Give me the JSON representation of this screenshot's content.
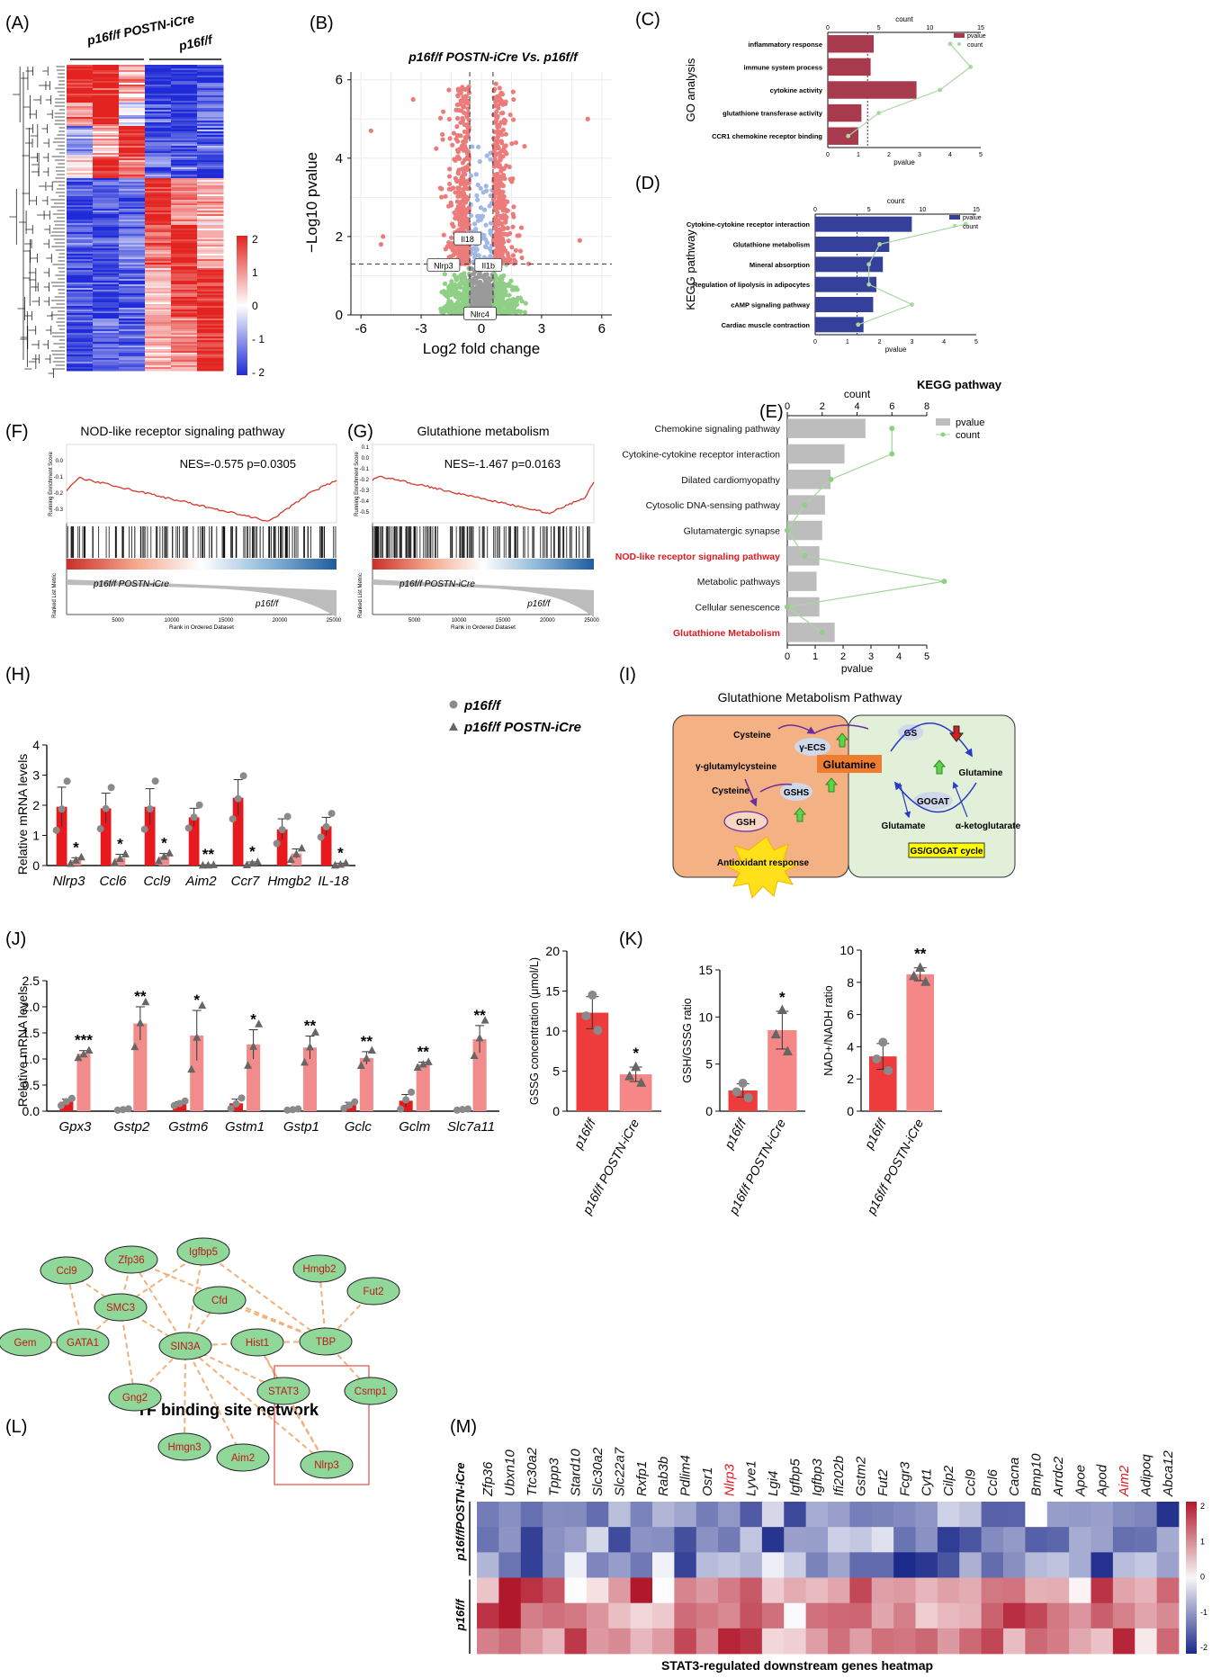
{
  "panels": {
    "A": {
      "label": "(A)",
      "groups": [
        "p16f/f POSTN-iCre",
        "p16f/f"
      ],
      "scale_ticks": [
        "2",
        "1",
        "0",
        "- 1",
        "- 2"
      ],
      "scale_colors": {
        "high": "#e3231f",
        "mid": "#ffffff",
        "low": "#1f2bd6"
      }
    },
    "B": {
      "label": "(B)",
      "title": "p16f/f POSTN-iCre  Vs. p16f/f",
      "xlabel": "Log2 fold change",
      "ylabel": "−Log10 pvalue",
      "gene_labels": [
        "Il18",
        "Nlrp3",
        "Il1b",
        "Nlrc4"
      ],
      "colors": {
        "up": "#ec7c7c",
        "mid": "#9fb8e6",
        "ns": "#8fcf86",
        "zero": "#9a9a9a"
      }
    },
    "C": {
      "label": "(C)",
      "side_label": "GO  analysis",
      "top_axis_label": "count",
      "bottom_axis_label": "pvalue",
      "legend": [
        "pvalue",
        "count"
      ],
      "terms": [
        "inflammatory response",
        "immune system process",
        "cytokine activity",
        "glutathione transferase activity",
        "CCR1 chemokine receptor binding"
      ],
      "bar_color": "#a83a4e"
    },
    "D": {
      "label": "(D)",
      "side_label": "KEGG  pathway",
      "top_axis_label": "count",
      "bottom_axis_label": "pvalue",
      "legend": [
        "pvalue",
        "count"
      ],
      "terms": [
        "Cytokine-cytokine receptor interaction",
        "Glutathione metabolism",
        "Mineral absorption",
        "Regulation of lipolysis in adipocytes",
        "cAMP signaling pathway",
        "Cardiac muscle contraction"
      ],
      "bar_color": "#34409a"
    },
    "E": {
      "label": "(E)",
      "title": "KEGG pathway",
      "legend": [
        "pvalue",
        "count"
      ],
      "highlight_color": "#e0191f"
    },
    "F": {
      "label": "(F)",
      "title": "NOD-like receptor signaling pathway",
      "stats": "NES=-0.575  p=0.0305",
      "ylabel_top": "Running Enrichment Score",
      "ylabel_bottom": "Ranked List Metric",
      "xlabel": "Rank in Ordered Dataset",
      "group1": "p16f/f POSTN-iCre",
      "group2": "p16f/f"
    },
    "G": {
      "label": "(G)",
      "title": "Glutathione metabolism",
      "stats": "NES=-1.467  p=0.0163",
      "ylabel_top": "Running Enrichment Score",
      "ylabel_bottom": "Ranked List Metric",
      "xlabel": "Rank in Ordered Dataset",
      "group1": "p16f/f POSTN-iCre",
      "group2": "p16f/f"
    },
    "H": {
      "label": "(H)",
      "ylabel": "Relative mRNA levels",
      "legend": [
        "p16f/f",
        "p16f/f POSTN-iCre"
      ],
      "colors": {
        "ctrl": "#e8191c",
        "cko": "#f28b8b"
      }
    },
    "I": {
      "label": "(I)",
      "title": "Glutathione Metabolism Pathway",
      "nodes": [
        "Cysteine",
        "γ-ECS",
        "γ-glutamylcysteine",
        "Cysteine",
        "GSHS",
        "GSH",
        "Antioxidant response",
        "Glutamine",
        "GS",
        "Glutamine",
        "GOGAT",
        "Glutamate",
        "α-ketoglutarate",
        "GS/GOGAT cycle"
      ]
    },
    "J": {
      "label": "(J)",
      "ylabel": "Relative mRNA levels"
    },
    "K": {
      "label": "(K)",
      "sub": [
        {
          "ylabel": "GSSG concentration (μmol/L)"
        },
        {
          "ylabel": "GSH/GSSG ratio"
        },
        {
          "ylabel": "NAD+/NADH ratio"
        }
      ],
      "groups": [
        "p16f/f",
        "p16f/f POSTN-iCre"
      ]
    },
    "L": {
      "label": "(L)",
      "title": "TF binding site network",
      "nodes": [
        "Ccl9",
        "Zfp36",
        "Igfbp5",
        "Hmgb2",
        "Fut2",
        "SMC3",
        "Cfd",
        "Gem",
        "GATA1",
        "SIN3A",
        "Hist1",
        "TBP",
        "STAT3",
        "Csmp1",
        "Gng2",
        "Hmgn3",
        "Aim2",
        "Nlrp3"
      ]
    },
    "M": {
      "label": "(M)",
      "caption": "STAT3-regulated downstream genes heatmap",
      "row_groups": [
        "p16f/fPOSTN-iCre",
        "p16f/f"
      ],
      "genes": [
        "Zfp36",
        "Ubxn10",
        "Ttc30a2",
        "Tppp3",
        "Stard10",
        "Slc30a2",
        "Slc22a7",
        "Rxfp1",
        "Rab3b",
        "Pdlim4",
        "Osr1",
        "Nlrp3",
        "Lyve1",
        "Lgi4",
        "Igfbp5",
        "Igfbp3",
        "Ifi202b",
        "Gstm2",
        "Fut2",
        "Fcgr3",
        "Cyt1",
        "Cilp2",
        "Ccl9",
        "Ccl6",
        "Cacna",
        "Bmp10",
        "Arrdc2",
        "Apoe",
        "Apod",
        "Aim2",
        "Adipoq",
        "Abca12"
      ],
      "red_genes": [
        "Nlrp3",
        "Aim2"
      ],
      "scale_ticks": [
        "2",
        "1",
        "0",
        "-1",
        "-2"
      ]
    }
  },
  "chart_data": [
    {
      "panel": "B",
      "type": "scatter",
      "title": "p16f/f POSTN-iCre  Vs. p16f/f",
      "xlabel": "Log2 fold change",
      "ylabel": "−Log10 pvalue",
      "xlim": [
        -6.5,
        6.5
      ],
      "ylim": [
        0,
        6.2
      ],
      "xticks": [
        -6,
        -3,
        0,
        3,
        6
      ],
      "yticks": [
        0,
        2,
        4,
        6
      ],
      "thresholds": {
        "x": [
          -0.58,
          0.58
        ],
        "y": 1.3
      },
      "labeled_points": [
        {
          "gene": "Il18",
          "x": -0.6,
          "y": 1.65
        },
        {
          "gene": "Nlrp3",
          "x": -0.9,
          "y": 1.3
        },
        {
          "gene": "Il1b",
          "x": -0.1,
          "y": 1.3
        },
        {
          "gene": "Nlrc4",
          "x": -0.25,
          "y": 0.2
        }
      ]
    },
    {
      "panel": "C",
      "type": "bar",
      "categories": [
        "inflammatory response",
        "immune system process",
        "cytokine activity",
        "glutathione transferase activity",
        "CCR1 chemokine receptor binding"
      ],
      "series": [
        {
          "name": "pvalue",
          "values": [
            1.5,
            1.4,
            2.9,
            1.1,
            1.0
          ]
        },
        {
          "name": "count",
          "values": [
            12,
            14,
            11,
            5,
            2
          ]
        }
      ],
      "xlim_pvalue": [
        0,
        5
      ],
      "xlim_count": [
        0,
        15
      ],
      "pvalue_ticks": [
        0,
        1,
        2,
        3,
        4,
        5
      ],
      "count_ticks": [
        0,
        5,
        10,
        15
      ]
    },
    {
      "panel": "D",
      "type": "bar",
      "categories": [
        "Cytokine-cytokine receptor interaction",
        "Glutathione metabolism",
        "Mineral absorption",
        "Regulation of lipolysis in adipocytes",
        "cAMP signaling pathway",
        "Cardiac muscle contraction"
      ],
      "series": [
        {
          "name": "pvalue",
          "values": [
            3.0,
            2.3,
            2.1,
            1.9,
            1.8,
            1.5
          ]
        },
        {
          "name": "count",
          "values": [
            14,
            6,
            5,
            5,
            9,
            4
          ]
        }
      ],
      "xlim_pvalue": [
        0,
        5
      ],
      "xlim_count": [
        0,
        15
      ],
      "pvalue_ticks": [
        0,
        1,
        2,
        3,
        4,
        5
      ],
      "count_ticks": [
        0,
        5,
        10,
        15
      ]
    },
    {
      "panel": "E",
      "type": "bar",
      "title": "KEGG pathway",
      "categories": [
        "Chemokine signaling pathway",
        "Cytokine-cytokine receptor interaction",
        "Dilated cardiomyopathy",
        "Cytosolic DNA-sensing pathway",
        "Glutamatergic synapse",
        "NOD-like receptor signaling pathway",
        "Metabolic pathways",
        "Cellular senescence",
        "Glutathione Metabolism"
      ],
      "highlighted": [
        "NOD-like receptor signaling pathway",
        "Glutathione Metabolism"
      ],
      "series": [
        {
          "name": "pvalue",
          "values": [
            2.8,
            2.05,
            1.55,
            1.35,
            1.25,
            1.15,
            1.05,
            1.15,
            1.7
          ]
        },
        {
          "name": "count",
          "values": [
            6,
            6,
            2.5,
            1,
            0,
            1,
            9,
            0,
            2
          ]
        }
      ],
      "xlabel_bottom": "pvalue",
      "xlabel_top": "count",
      "xlim_pvalue": [
        0,
        5
      ],
      "xlim_count": [
        0,
        8
      ],
      "pvalue_ticks": [
        0,
        1,
        2,
        3,
        4,
        5
      ],
      "count_ticks": [
        0,
        2,
        4,
        6,
        8
      ]
    },
    {
      "panel": "H",
      "type": "bar",
      "ylabel": "Relative mRNA levels",
      "ylim": [
        0,
        4
      ],
      "yticks": [
        0,
        1,
        2,
        3,
        4
      ],
      "categories": [
        "Nlrp3",
        "Ccl6",
        "Ccl9",
        "Aim2",
        "Ccr7",
        "Hmgb2",
        "IL-18"
      ],
      "series": [
        {
          "name": "p16f/f",
          "values": [
            1.95,
            1.9,
            1.95,
            1.6,
            2.25,
            1.2,
            1.3
          ],
          "err": [
            0.65,
            0.5,
            0.6,
            0.3,
            0.6,
            0.35,
            0.3
          ]
        },
        {
          "name": "p16f/f POSTN-iCre",
          "values": [
            0.18,
            0.25,
            0.3,
            0.02,
            0.08,
            0.4,
            0.05
          ],
          "err": [
            0.08,
            0.12,
            0.1,
            0.01,
            0.04,
            0.15,
            0.03
          ]
        }
      ],
      "significance": [
        "*",
        "*",
        "*",
        "**",
        "*",
        "",
        "*"
      ]
    },
    {
      "panel": "J",
      "type": "bar",
      "ylabel": "Relative mRNA levels",
      "ylim": [
        0,
        2.5
      ],
      "yticks": [
        0.0,
        0.5,
        1.0,
        1.5,
        2.0,
        2.5
      ],
      "categories": [
        "Gpx3",
        "Gstp2",
        "Gstm6",
        "Gstm1",
        "Gstp1",
        "Gclc",
        "Gclm",
        "Slc7a11"
      ],
      "series": [
        {
          "name": "p16f/f",
          "values": [
            0.18,
            0.03,
            0.15,
            0.15,
            0.03,
            0.12,
            0.2,
            0.03
          ],
          "err": [
            0.05,
            0.01,
            0.03,
            0.08,
            0.01,
            0.05,
            0.12,
            0.01
          ]
        },
        {
          "name": "p16f/f POSTN-iCre",
          "values": [
            1.1,
            1.68,
            1.45,
            1.28,
            1.22,
            1.02,
            0.9,
            1.38
          ],
          "err": [
            0.06,
            0.32,
            0.48,
            0.28,
            0.22,
            0.12,
            0.04,
            0.26
          ]
        }
      ],
      "significance": [
        "***",
        "**",
        "*",
        "*",
        "**",
        "**",
        "**",
        "**"
      ]
    },
    {
      "panel": "K1",
      "type": "bar",
      "ylabel": "GSSG concentration (μmol/L)",
      "categories": [
        "p16f/f",
        "p16f/f POSTN-iCre"
      ],
      "values": [
        12.3,
        4.6
      ],
      "err": [
        2.0,
        0.9
      ],
      "ylim": [
        0,
        20
      ],
      "yticks": [
        0,
        5,
        10,
        15,
        20
      ],
      "significance": [
        "",
        "*"
      ]
    },
    {
      "panel": "K2",
      "type": "bar",
      "ylabel": "GSH/GSSG ratio",
      "categories": [
        "p16f/f",
        "p16f/f POSTN-iCre"
      ],
      "values": [
        2.2,
        8.6
      ],
      "err": [
        0.7,
        2.0
      ],
      "ylim": [
        0,
        15
      ],
      "yticks": [
        0,
        5,
        10,
        15
      ],
      "significance": [
        "",
        "*"
      ]
    },
    {
      "panel": "K3",
      "type": "bar",
      "ylabel": "NAD+/NADH ratio",
      "categories": [
        "p16f/f",
        "p16f/f POSTN-iCre"
      ],
      "values": [
        3.4,
        8.5
      ],
      "err": [
        0.8,
        0.4
      ],
      "ylim": [
        0,
        10
      ],
      "yticks": [
        0,
        2,
        4,
        6,
        8,
        10
      ],
      "significance": [
        "",
        "**"
      ]
    }
  ]
}
